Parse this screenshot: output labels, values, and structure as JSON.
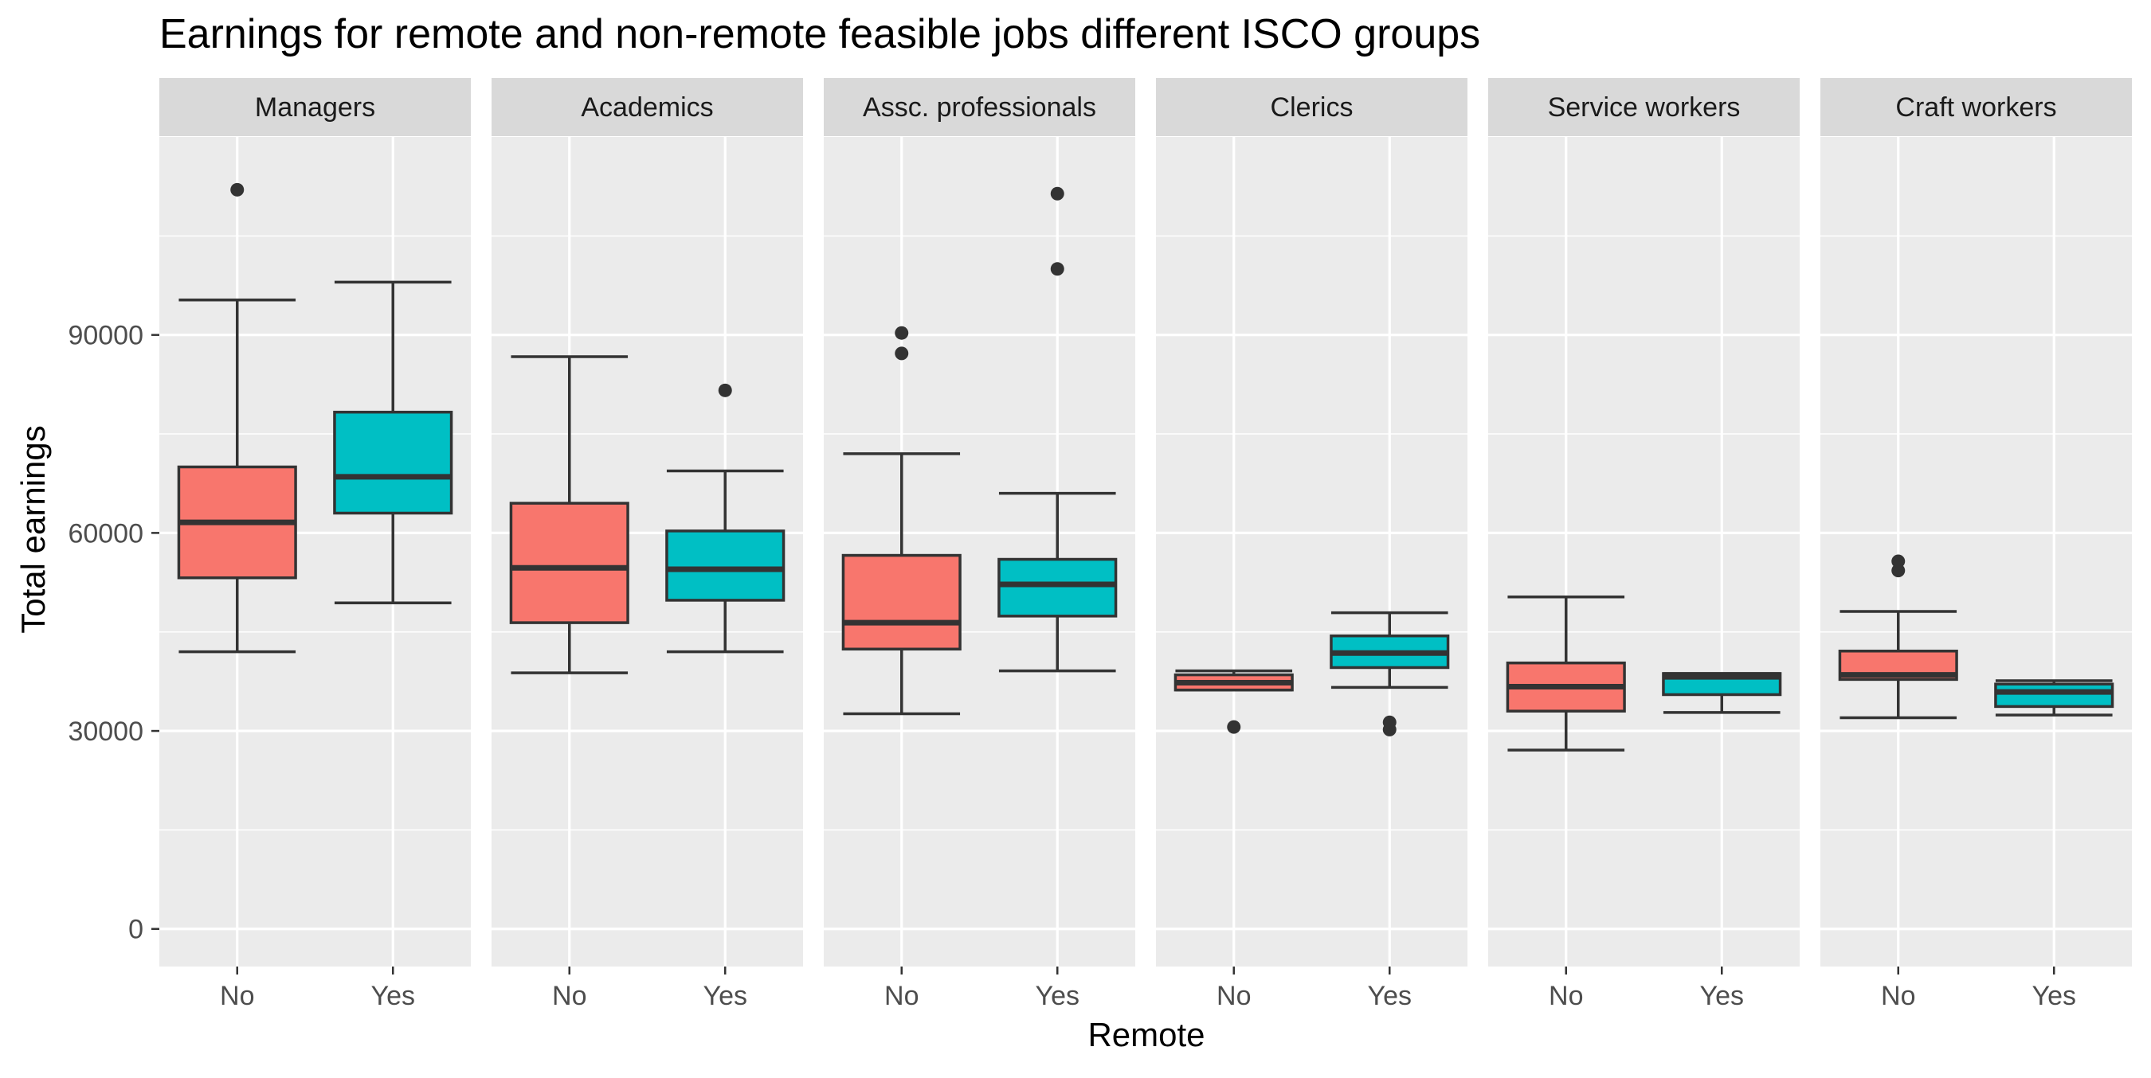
{
  "chart_data": {
    "type": "boxplot",
    "title": "Earnings for remote and non-remote feasible jobs different ISCO groups",
    "xlabel": "Remote",
    "ylabel": "Total earnings",
    "categories": [
      "No",
      "Yes"
    ],
    "yticks": [
      0,
      30000,
      60000,
      90000
    ],
    "ylim": [
      -5700,
      120000
    ],
    "grid": true,
    "legend": "none",
    "colors": {
      "No": "#F8766D",
      "Yes": "#00BFC4",
      "panel_bg": "#EBEBEB",
      "strip_bg": "#D9D9D9",
      "box_line": "#333333"
    },
    "facets": [
      {
        "name": "Managers",
        "boxes": [
          {
            "group": "No",
            "lower": 42000,
            "q1": 53200,
            "median": 61600,
            "q3": 70000,
            "upper": 95300,
            "outliers": [
              112000
            ]
          },
          {
            "group": "Yes",
            "lower": 49400,
            "q1": 63000,
            "median": 68500,
            "q3": 78300,
            "upper": 98000,
            "outliers": []
          }
        ]
      },
      {
        "name": "Academics",
        "boxes": [
          {
            "group": "No",
            "lower": 38800,
            "q1": 46400,
            "median": 54700,
            "q3": 64500,
            "upper": 86700,
            "outliers": []
          },
          {
            "group": "Yes",
            "lower": 42000,
            "q1": 49800,
            "median": 54500,
            "q3": 60300,
            "upper": 69400,
            "outliers": [
              81600
            ]
          }
        ]
      },
      {
        "name": "Assc. professionals",
        "boxes": [
          {
            "group": "No",
            "lower": 32600,
            "q1": 42400,
            "median": 46400,
            "q3": 56600,
            "upper": 72000,
            "outliers": [
              87200,
              90300
            ]
          },
          {
            "group": "Yes",
            "lower": 39100,
            "q1": 47400,
            "median": 52200,
            "q3": 56000,
            "upper": 66000,
            "outliers": [
              100000,
              111400
            ]
          }
        ]
      },
      {
        "name": "Clerics",
        "boxes": [
          {
            "group": "No",
            "lower": 36200,
            "q1": 36200,
            "median": 37300,
            "q3": 38500,
            "upper": 39100,
            "outliers": [
              30600
            ]
          },
          {
            "group": "Yes",
            "lower": 36600,
            "q1": 39600,
            "median": 41800,
            "q3": 44400,
            "upper": 47900,
            "outliers": [
              30200,
              31300
            ]
          }
        ]
      },
      {
        "name": "Service workers",
        "boxes": [
          {
            "group": "No",
            "lower": 27100,
            "q1": 33000,
            "median": 36700,
            "q3": 40300,
            "upper": 50300,
            "outliers": []
          },
          {
            "group": "Yes",
            "lower": 32800,
            "q1": 35500,
            "median": 38200,
            "q3": 38700,
            "upper": 38700,
            "outliers": []
          }
        ]
      },
      {
        "name": "Craft workers",
        "boxes": [
          {
            "group": "No",
            "lower": 32000,
            "q1": 37800,
            "median": 38500,
            "q3": 42100,
            "upper": 48100,
            "outliers": [
              54300,
              55700
            ]
          },
          {
            "group": "Yes",
            "lower": 32400,
            "q1": 33700,
            "median": 35900,
            "q3": 37100,
            "upper": 37600,
            "outliers": []
          }
        ]
      }
    ]
  }
}
